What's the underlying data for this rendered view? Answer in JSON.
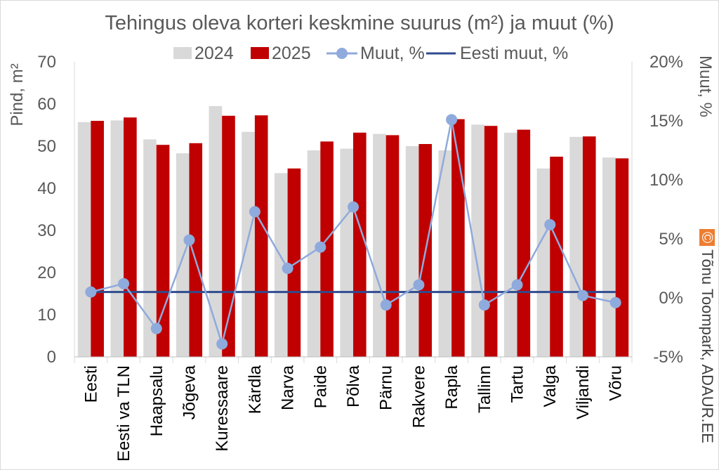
{
  "chart_data": {
    "type": "bar",
    "title": "Tehingus oleva korteri keskmine suurus (m²) ja muut (%)",
    "ylabel": "Pind, m²",
    "y2label": "Muut, %",
    "ylim": [
      0,
      70
    ],
    "y2lim": [
      -5,
      20
    ],
    "yticks": [
      "0",
      "10",
      "20",
      "30",
      "40",
      "50",
      "60",
      "70"
    ],
    "y2ticks": [
      "-5%",
      "0%",
      "5%",
      "10%",
      "15%",
      "20%"
    ],
    "legend_position": "top",
    "categories": [
      "Eesti",
      "Eesti va TLN",
      "Haapsalu",
      "Jõgeva",
      "Kuressaare",
      "Kärdla",
      "Narva",
      "Paide",
      "Põlva",
      "Pärnu",
      "Rakvere",
      "Rapla",
      "Tallinn",
      "Tartu",
      "Valga",
      "Viljandi",
      "Võru"
    ],
    "series": [
      {
        "name": "2024",
        "type": "bar",
        "color": "#d9d9d9",
        "values": [
          55.7,
          56.1,
          51.6,
          48.3,
          59.5,
          53.4,
          43.6,
          49.0,
          49.4,
          52.9,
          50.0,
          49.0,
          55.1,
          53.2,
          44.7,
          52.2,
          47.3
        ]
      },
      {
        "name": "2025",
        "type": "bar",
        "color": "#c00000",
        "values": [
          56.0,
          56.8,
          50.3,
          50.7,
          57.2,
          57.3,
          44.7,
          51.1,
          53.2,
          52.6,
          50.5,
          56.4,
          54.8,
          53.9,
          47.5,
          52.3,
          47.1
        ]
      },
      {
        "name": "Muut, %",
        "type": "line",
        "axis": "right",
        "color": "#8faadc",
        "values": [
          0.5,
          1.2,
          -2.6,
          4.9,
          -3.9,
          7.3,
          2.5,
          4.3,
          7.7,
          -0.6,
          1.1,
          15.1,
          -0.6,
          1.1,
          6.2,
          0.2,
          -0.4
        ]
      },
      {
        "name": "Eesti muut, %",
        "type": "line",
        "axis": "right",
        "color": "#2f4b8f",
        "values": [
          0.5,
          0.5,
          0.5,
          0.5,
          0.5,
          0.5,
          0.5,
          0.5,
          0.5,
          0.5,
          0.5,
          0.5,
          0.5,
          0.5,
          0.5,
          0.5,
          0.5
        ]
      }
    ]
  },
  "watermark": {
    "symbol": "©",
    "text": "Tõnu Toompark, ADAUR.EE"
  }
}
